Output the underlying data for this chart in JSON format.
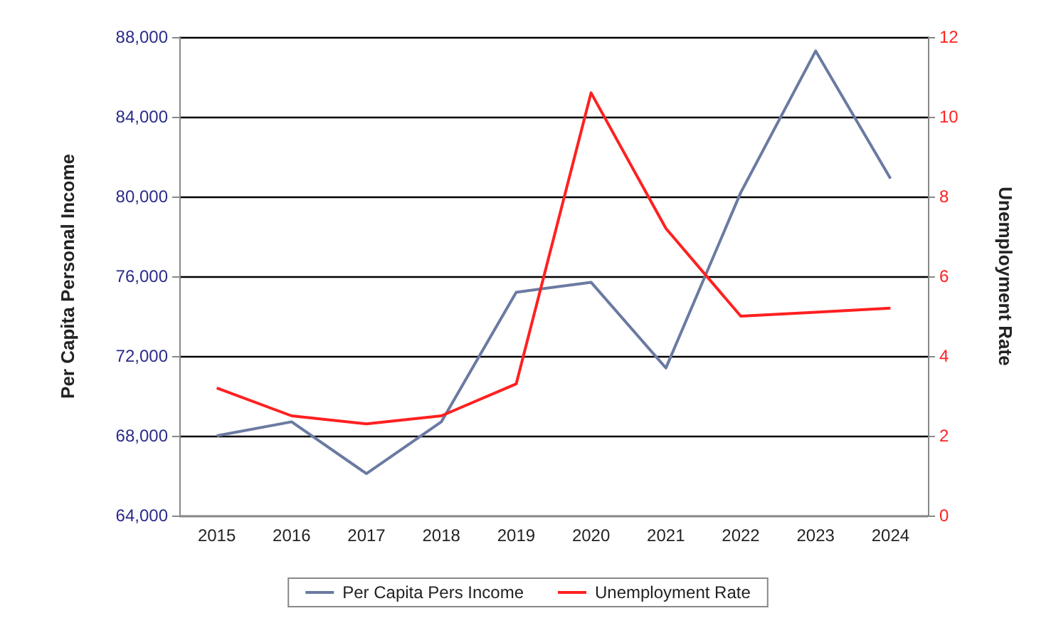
{
  "chart_data": {
    "type": "line",
    "categories": [
      "2015",
      "2016",
      "2017",
      "2018",
      "2019",
      "2020",
      "2021",
      "2022",
      "2023",
      "2024"
    ],
    "ylabel": "Per Capita Personal Income",
    "y2label": "Unemployment Rate",
    "ylim": [
      64000,
      88000
    ],
    "yticks": [
      {
        "value": 64000,
        "label": "64,000"
      },
      {
        "value": 68000,
        "label": "68,000"
      },
      {
        "value": 72000,
        "label": "72,000"
      },
      {
        "value": 76000,
        "label": "76,000"
      },
      {
        "value": 80000,
        "label": "80,000"
      },
      {
        "value": 84000,
        "label": "84,000"
      },
      {
        "value": 88000,
        "label": "88,000"
      }
    ],
    "y2lim": [
      0,
      12
    ],
    "y2ticks": [
      0,
      2,
      4,
      6,
      8,
      10,
      12
    ],
    "series": [
      {
        "name": "Per Capita Pers Income",
        "color": "#6b7aa1",
        "values": [
          68000,
          68700,
          66100,
          68700,
          75200,
          75700,
          71400,
          80200,
          87300,
          80900
        ]
      },
      {
        "name": "Unemployment Rate",
        "color": "#ff2020",
        "axis": "y2",
        "values": [
          3.2,
          2.5,
          2.3,
          2.5,
          3.3,
          10.6,
          7.2,
          5.0,
          5.1,
          5.2
        ]
      }
    ],
    "grid": "y",
    "legend": "bottom",
    "marker": "none",
    "line_style": "solid"
  }
}
